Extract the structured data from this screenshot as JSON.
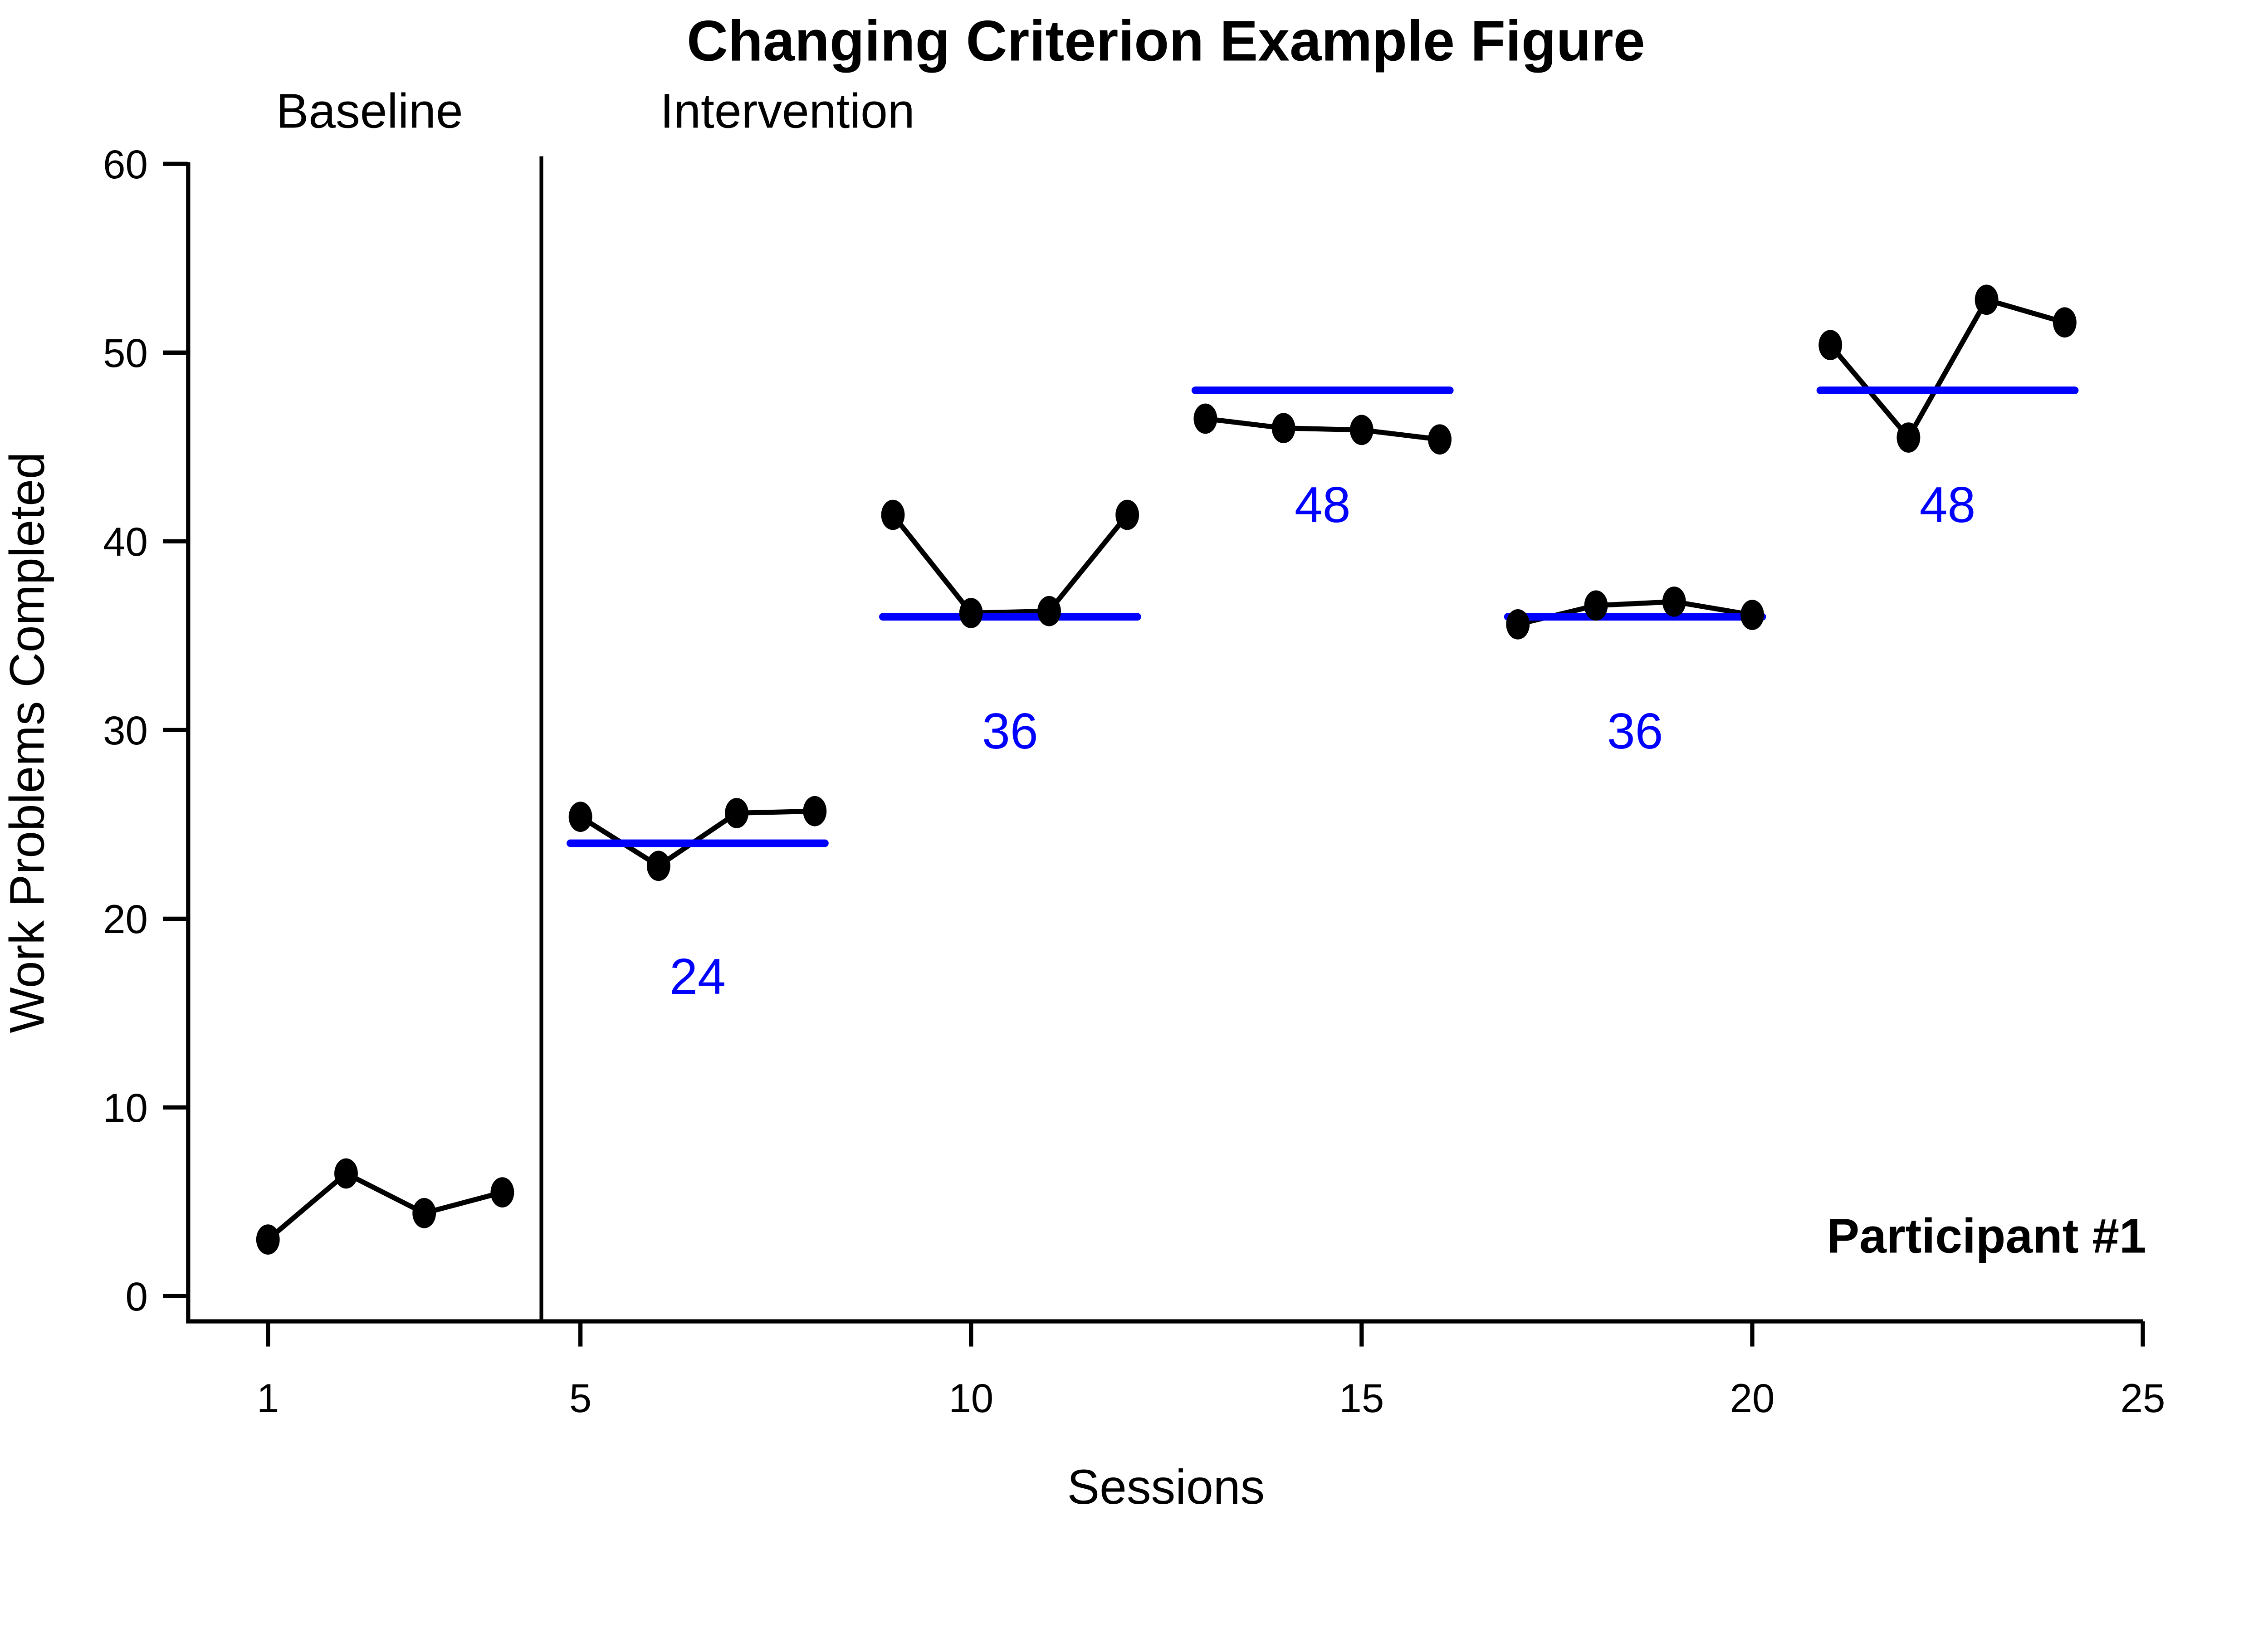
{
  "chart_data": {
    "type": "line",
    "title": "Changing Criterion Example Figure",
    "xlabel": "Sessions",
    "ylabel": "Work Problems Completed",
    "xlim": [
      1,
      25
    ],
    "ylim": [
      0,
      60
    ],
    "x_ticks": [
      1,
      5,
      10,
      15,
      20,
      25
    ],
    "y_ticks": [
      0,
      10,
      20,
      30,
      40,
      50,
      60
    ],
    "grid": false,
    "legend": "none",
    "point_color": "#000000",
    "line_color": "#000000",
    "criterion_color": "#0000ff",
    "phase_change_line_x": 4.5,
    "phase_labels": [
      {
        "text": "Baseline",
        "x": 2.3
      },
      {
        "text": "Intervention",
        "x": 7.65
      }
    ],
    "annotation": {
      "text": "Participant #1",
      "x": 23,
      "y": 3.2
    },
    "series": [
      {
        "name": "Baseline",
        "criterion": null,
        "sessions": [
          1,
          2,
          3,
          4
        ],
        "values": [
          3.0,
          6.5,
          4.4,
          5.5
        ]
      },
      {
        "name": "Criterion 24",
        "criterion": 24,
        "sessions": [
          5,
          6,
          7,
          8
        ],
        "values": [
          25.4,
          22.8,
          25.6,
          25.7
        ]
      },
      {
        "name": "Criterion 36",
        "criterion": 36,
        "sessions": [
          9,
          10,
          11,
          12
        ],
        "values": [
          41.4,
          36.2,
          36.3,
          41.4
        ]
      },
      {
        "name": "Criterion 48",
        "criterion": 48,
        "sessions": [
          13,
          14,
          15,
          16
        ],
        "values": [
          46.5,
          46.0,
          45.9,
          45.4
        ]
      },
      {
        "name": "Criterion 36 (2)",
        "criterion": 36,
        "sessions": [
          17,
          18,
          19,
          20
        ],
        "values": [
          35.6,
          36.6,
          36.8,
          36.1
        ]
      },
      {
        "name": "Criterion 48 (2)",
        "criterion": 48,
        "sessions": [
          21,
          22,
          23,
          24
        ],
        "values": [
          50.4,
          45.5,
          52.8,
          51.6
        ]
      }
    ],
    "criterion_labels": [
      {
        "text": "24",
        "x": 6.5,
        "y": 17
      },
      {
        "text": "36",
        "x": 10.5,
        "y": 30
      },
      {
        "text": "48",
        "x": 14.5,
        "y": 42
      },
      {
        "text": "36",
        "x": 18.5,
        "y": 30
      },
      {
        "text": "48",
        "x": 22.5,
        "y": 42
      }
    ]
  }
}
